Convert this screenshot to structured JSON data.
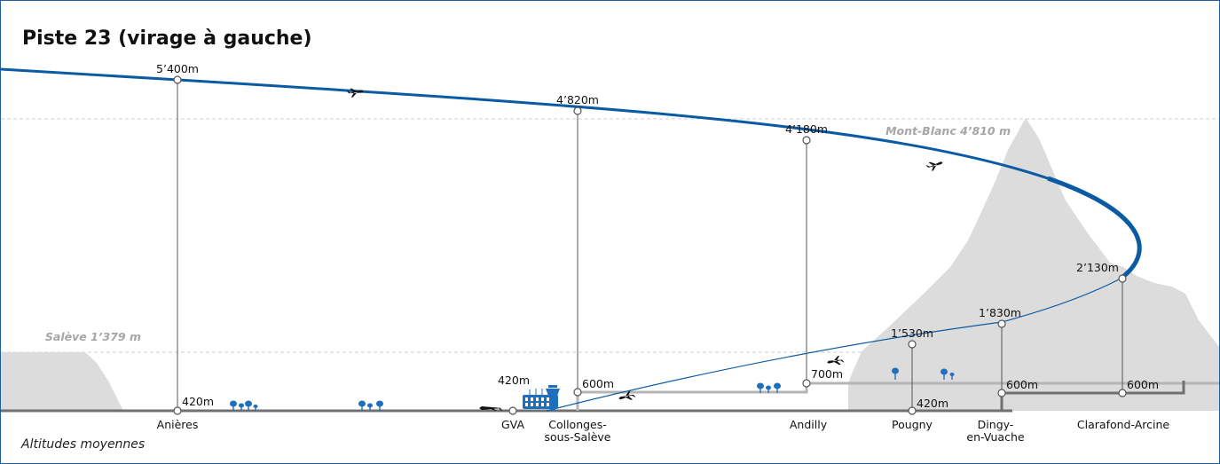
{
  "title": "Piste 23 (virage à gauche)",
  "footnote": "Altitudes moyennes",
  "references": {
    "salève": "Salève 1’379 m",
    "mont_blanc": "Mont-Blanc 4’810 m"
  },
  "colors": {
    "flight_path": "#0a5ba3",
    "terrain": "#dcdcdc",
    "ground_low": "#707070",
    "ground_high": "#b5b5b5",
    "icons": "#1f6fbf"
  },
  "airport": {
    "name": "GVA",
    "altitude": "420m"
  },
  "waypoints": [
    {
      "name": "Anières",
      "flight_altitude": "5’400m",
      "ground_altitude": "420m"
    },
    {
      "name": "Collonges-\nsous-Salève",
      "line1": "Collonges-",
      "line2": "sous-Salève",
      "flight_altitude": "4’820m",
      "ground_altitude": "600m"
    },
    {
      "name": "Andilly",
      "flight_altitude": "4’180m",
      "ground_altitude": "700m"
    },
    {
      "name": "Pougny",
      "flight_altitude": "1’530m",
      "ground_altitude": "420m"
    },
    {
      "name": "Dingy-\nen-Vuache",
      "line1": "Dingy-",
      "line2": "en-Vuache",
      "flight_altitude": "1’830m",
      "ground_altitude": "600m"
    },
    {
      "name": "Clarafond-Arcine",
      "flight_altitude": "2’130m",
      "ground_altitude": "600m"
    }
  ],
  "icons": [
    "airplane-icon",
    "terminal-icon",
    "control-tower-icon",
    "tree-icon"
  ]
}
